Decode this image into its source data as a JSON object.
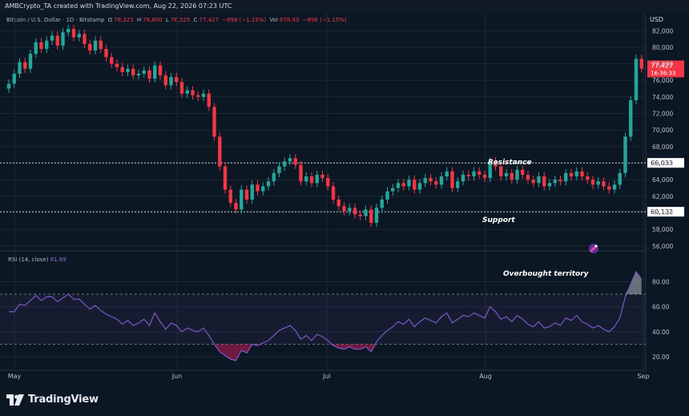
{
  "header": {
    "title": "AMBCrypto_TA created with TradingView.com, Aug 22, 2026 07:23 UTC",
    "symbol": "Bitcoin / U.S. Dollar · 1D · Bitstamp",
    "open_label": "O",
    "open": "78,325",
    "high_label": "H",
    "high": "78,800",
    "low_label": "L",
    "low": "76,525",
    "close_label": "C",
    "close": "77,427",
    "change": "−898 (−1.15%)",
    "vol_label": "Vol",
    "vol": "878.43",
    "vol_change": "−898 (−1.15%)"
  },
  "currency": "USD",
  "price_tag": {
    "price": "77,427",
    "countdown": "16:36:33"
  },
  "levels": {
    "resistance": "66,033",
    "support": "60,132"
  },
  "annotations": {
    "resistance": "Resistance",
    "support": "Support",
    "overbought": "Overbought territory"
  },
  "rsi_label": {
    "name": "RSI (14, close)",
    "value": "81.69"
  },
  "brand": "TradingView",
  "colors": {
    "up": "#26a69a",
    "down": "#f23645",
    "rsi": "#7e57c2",
    "background": "#0c1724",
    "tag": "#f23645"
  },
  "chart_data": [
    {
      "type": "candlestick",
      "title": "Bitcoin / U.S. Dollar · 1D · Bitstamp",
      "y_axis_ticks": [
        82000,
        80000,
        78000,
        76000,
        74000,
        72000,
        70000,
        68000,
        66000,
        64000,
        62000,
        60000,
        58000,
        56000
      ],
      "ylim": [
        55500,
        82800
      ],
      "x_axis_ticks": [
        "May",
        "Jun",
        "Jul",
        "Aug",
        "Sep"
      ],
      "horizontal_lines": [
        66033,
        60132
      ],
      "grid": true,
      "close": [
        75600,
        76800,
        78200,
        77400,
        79200,
        80600,
        79800,
        80800,
        81400,
        80200,
        81800,
        82200,
        81200,
        81600,
        80400,
        79600,
        80800,
        79800,
        78800,
        78000,
        77600,
        77000,
        77400,
        76600,
        76800,
        77200,
        76200,
        77800,
        76600,
        75400,
        76400,
        75800,
        74400,
        74800,
        74200,
        74000,
        74400,
        72800,
        69200,
        65600,
        62800,
        61200,
        60400,
        62800,
        61600,
        63400,
        62600,
        63200,
        63800,
        64800,
        65600,
        66200,
        66600,
        65800,
        63800,
        64400,
        63600,
        64600,
        64200,
        63200,
        61600,
        60800,
        60200,
        60600,
        59800,
        59600,
        60400,
        58800,
        60600,
        61600,
        62600,
        63000,
        63600,
        63200,
        64000,
        62800,
        63600,
        64200,
        63800,
        63400,
        64400,
        65000,
        63000,
        63800,
        64600,
        64400,
        65000,
        64600,
        64200,
        66200,
        65600,
        64400,
        64800,
        64000,
        65200,
        64600,
        64000,
        63600,
        64400,
        63200,
        63600,
        64000,
        63800,
        64800,
        64400,
        65000,
        64400,
        64000,
        63400,
        63800,
        63200,
        62800,
        63400,
        64800,
        69200,
        73600,
        78600,
        77427
      ]
    },
    {
      "type": "line",
      "title": "RSI (14, close)",
      "y_axis_ticks": [
        80,
        60,
        40,
        20
      ],
      "ylim": [
        13,
        95
      ],
      "bands": [
        70,
        30
      ],
      "values": [
        56,
        56,
        62,
        61,
        65,
        69,
        65,
        68,
        68,
        64,
        67,
        70,
        66,
        66,
        62,
        58,
        61,
        57,
        54,
        52,
        50,
        46,
        49,
        45,
        47,
        50,
        45,
        55,
        48,
        42,
        47,
        45,
        40,
        43,
        41,
        40,
        43,
        37,
        30,
        24,
        21,
        18,
        17,
        25,
        23,
        30,
        29,
        31,
        33,
        37,
        41,
        43,
        45,
        41,
        34,
        37,
        33,
        38,
        36,
        33,
        29,
        27,
        26,
        28,
        26,
        26,
        28,
        24,
        32,
        37,
        41,
        44,
        48,
        46,
        50,
        44,
        48,
        51,
        49,
        47,
        52,
        55,
        47,
        50,
        53,
        52,
        55,
        53,
        51,
        60,
        56,
        50,
        52,
        48,
        53,
        50,
        46,
        44,
        48,
        43,
        44,
        47,
        45,
        51,
        49,
        53,
        48,
        46,
        43,
        45,
        42,
        40,
        44,
        51,
        68,
        78,
        88,
        82
      ]
    }
  ]
}
